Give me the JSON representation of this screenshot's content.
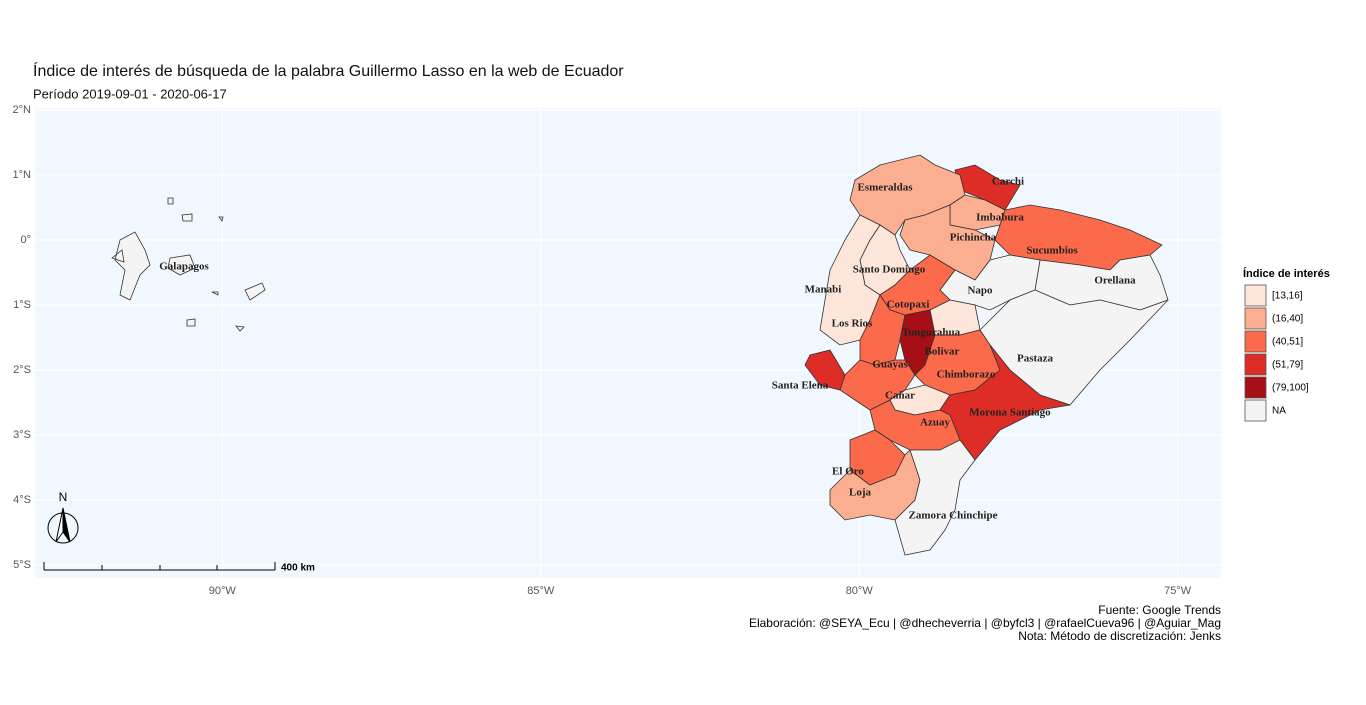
{
  "title": "Índice de interés de búsqueda de la palabra Guillermo Lasso en la web de Ecuador",
  "subtitle": "Período 2019-09-01 - 2020-06-17",
  "map": {
    "xlim": [
      -92.94,
      -74.32
    ],
    "ylim": [
      -5.2,
      2.03
    ],
    "xticks": [
      {
        "value": -90,
        "label": "90°W"
      },
      {
        "value": -85,
        "label": "85°W"
      },
      {
        "value": -80,
        "label": "80°W"
      },
      {
        "value": -75,
        "label": "75°W"
      }
    ],
    "yticks": [
      {
        "value": 2,
        "label": "2°N"
      },
      {
        "value": 1,
        "label": "1°N"
      },
      {
        "value": 0,
        "label": "0°"
      },
      {
        "value": -1,
        "label": "1°S"
      },
      {
        "value": -2,
        "label": "2°S"
      },
      {
        "value": -3,
        "label": "3°S"
      },
      {
        "value": -4,
        "label": "4°S"
      },
      {
        "value": -5,
        "label": "5°S"
      }
    ],
    "grid": true,
    "north_label": "N",
    "scale_bar_label": "400 km"
  },
  "legend": {
    "title": "Índice de interés",
    "items": [
      {
        "label": "[13,16]",
        "color": "#fee5d9"
      },
      {
        "label": "(16,40]",
        "color": "#fcae91"
      },
      {
        "label": "(40,51]",
        "color": "#fb6a4a"
      },
      {
        "label": "(51,79]",
        "color": "#de2d26"
      },
      {
        "label": "(79,100]",
        "color": "#a50f15"
      },
      {
        "label": "NA",
        "color": "#f4f4f4"
      }
    ]
  },
  "provinces": [
    {
      "name": "Carchi",
      "class": "(51,79]"
    },
    {
      "name": "Esmeraldas",
      "class": "(16,40]"
    },
    {
      "name": "Imbabura",
      "class": "(16,40]"
    },
    {
      "name": "Pichincha",
      "class": "(16,40]"
    },
    {
      "name": "Sucumbios",
      "class": "(40,51]"
    },
    {
      "name": "Santo Domingo",
      "class": "[13,16]"
    },
    {
      "name": "Orellana",
      "class": "NA"
    },
    {
      "name": "Manabi",
      "class": "[13,16]"
    },
    {
      "name": "Napo",
      "class": "NA"
    },
    {
      "name": "Cotopaxi",
      "class": "(40,51]"
    },
    {
      "name": "Los Rios",
      "class": "(40,51]"
    },
    {
      "name": "Tungurahua",
      "class": "[13,16]"
    },
    {
      "name": "Bolivar",
      "class": "(79,100]"
    },
    {
      "name": "Pastaza",
      "class": "NA"
    },
    {
      "name": "Guayas",
      "class": "(40,51]"
    },
    {
      "name": "Chimborazo",
      "class": "(40,51]"
    },
    {
      "name": "Santa Elena",
      "class": "(51,79]"
    },
    {
      "name": "Cañar",
      "class": "[13,16]"
    },
    {
      "name": "Morona Santiago",
      "class": "(51,79]"
    },
    {
      "name": "Azuay",
      "class": "(40,51]"
    },
    {
      "name": "El Oro",
      "class": "(40,51]"
    },
    {
      "name": "Loja",
      "class": "(16,40]"
    },
    {
      "name": "Zamora Chinchipe",
      "class": "NA"
    },
    {
      "name": "Galapagos",
      "class": "NA"
    }
  ],
  "caption": [
    "Fuente: Google Trends",
    "Elaboración:  @SEYA_Ecu | @dhecheverria | @byfcl3 | @rafaelCueva96 | @Aguiar_Mag",
    "Nota: Método de discretización: Jenks"
  ]
}
